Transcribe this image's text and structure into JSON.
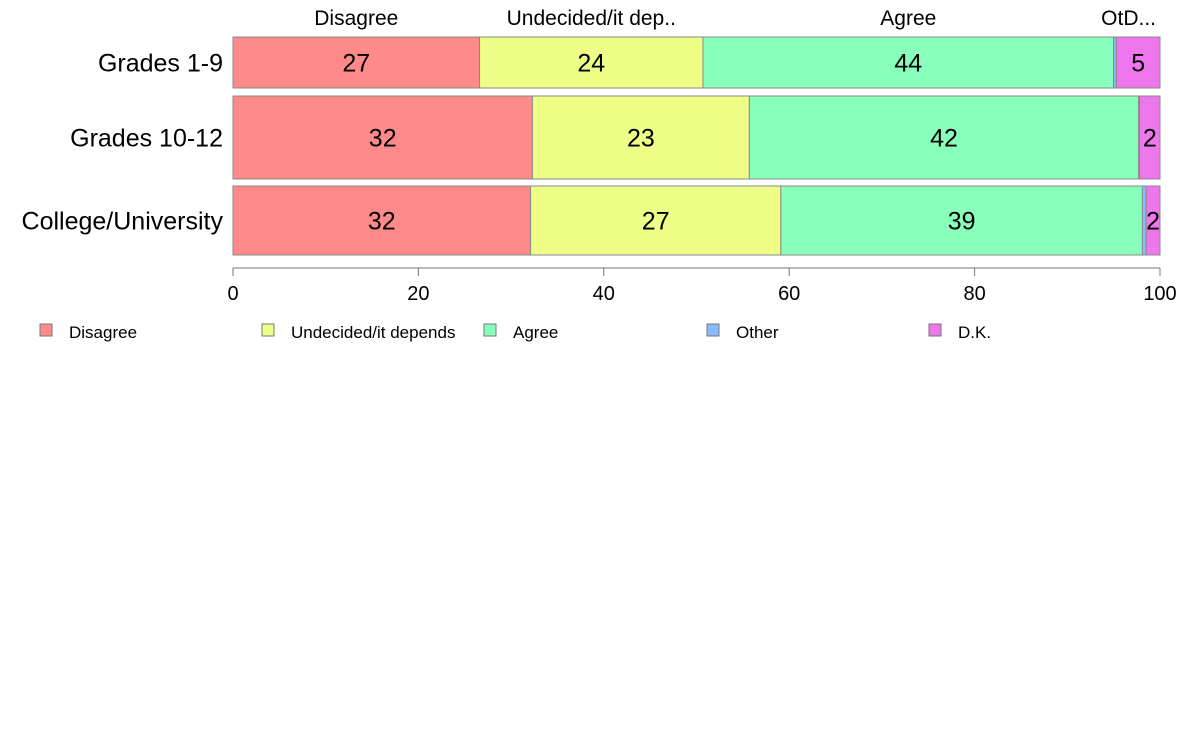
{
  "chart_data": {
    "type": "bar",
    "orientation": "horizontal",
    "stacked": true,
    "categories": [
      "Grades 1-9",
      "Grades 10-12",
      "College/University"
    ],
    "series": [
      {
        "name": "Disagree",
        "color": "#ff8a8a",
        "values": [
          26.6,
          32.3,
          32.1
        ]
      },
      {
        "name": "Undecided/it depends",
        "color": "#eeff88",
        "values": [
          24.1,
          23.4,
          27.0
        ]
      },
      {
        "name": "Agree",
        "color": "#88ffbb",
        "values": [
          44.3,
          42.0,
          39.0
        ]
      },
      {
        "name": "Other",
        "color": "#88bbff",
        "values": [
          0.3,
          0.1,
          0.4
        ]
      },
      {
        "name": "D.K.",
        "color": "#ee77ee",
        "values": [
          4.7,
          2.2,
          1.5
        ]
      }
    ],
    "data_labels": [
      [
        "27",
        "24",
        "44",
        "",
        "5"
      ],
      [
        "32",
        "23",
        "42",
        "",
        "2"
      ],
      [
        "32",
        "27",
        "39",
        "",
        "2"
      ]
    ],
    "top_labels": [
      "Disagree",
      "Undecided/it dep..",
      "Agree",
      "OtD..."
    ],
    "xlim": [
      0,
      100
    ],
    "xticks": [
      0,
      20,
      40,
      60,
      80,
      100
    ],
    "legend_placement": "bottom",
    "grid": false
  }
}
